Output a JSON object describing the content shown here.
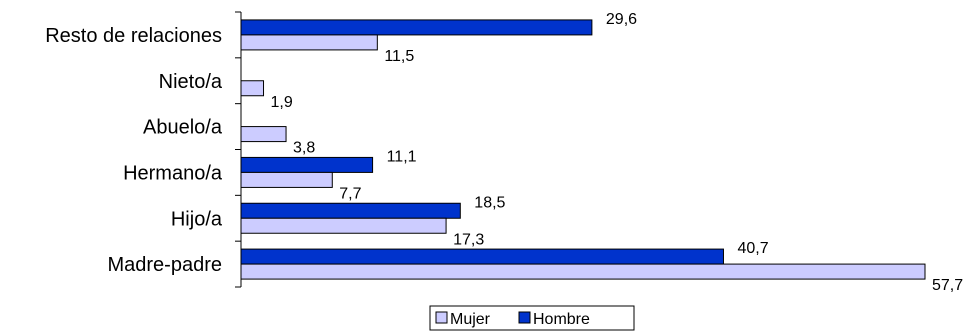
{
  "chart_data": {
    "type": "bar",
    "orientation": "horizontal",
    "title": "",
    "categories": [
      "Resto de relaciones",
      "Nieto/a",
      "Abuelo/a",
      "Hermano/a",
      "Hijo/a",
      "Madre-padre"
    ],
    "series": [
      {
        "name": "Hombre",
        "color": "#0033cc",
        "values": [
          29.6,
          null,
          null,
          11.1,
          18.5,
          40.7
        ],
        "labels": [
          "29,6",
          "",
          "",
          "11,1",
          "18,5",
          "40,7"
        ]
      },
      {
        "name": "Mujer",
        "color": "#ccccff",
        "values": [
          11.5,
          1.9,
          3.8,
          7.7,
          17.3,
          57.7
        ],
        "labels": [
          "11,5",
          "1,9",
          "3,8",
          "7,7",
          "17,3",
          "57,7"
        ]
      }
    ],
    "xlim": [
      0,
      60
    ],
    "grid": false,
    "legend": {
      "placement": "bottom",
      "entries": [
        "Mujer",
        "Hombre"
      ]
    }
  }
}
